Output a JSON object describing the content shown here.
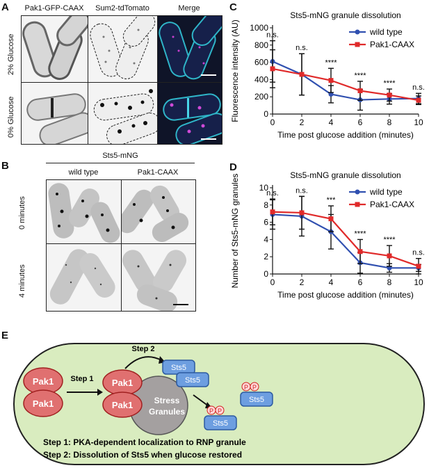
{
  "panelA": {
    "letter": "A",
    "columns": [
      "Pak1-GFP-CAAX",
      "Sum2-tdTomato",
      "Merge"
    ],
    "rows": [
      "2% Glucose",
      "0% Glucose"
    ]
  },
  "panelB": {
    "letter": "B",
    "title": "Sts5-mNG",
    "columns": [
      "wild type",
      "Pak1-CAAX"
    ],
    "rows": [
      "0 minutes",
      "4 minutes"
    ]
  },
  "panelC": {
    "letter": "C"
  },
  "panelD": {
    "letter": "D"
  },
  "panelE": {
    "letter": "E",
    "pak1": "Pak1",
    "sts5": "Sts5",
    "step1": "Step 1",
    "step2": "Step 2",
    "stress1": "Stress",
    "stress2": "Granules",
    "p": "P",
    "legend1": "Step 1: PKA-dependent localization to RNP granule",
    "legend2": "Step 2: Dissolution of Sts5 when glucose restored"
  },
  "chart_data": [
    {
      "type": "line",
      "title": "Sts5-mNG granule dissolution",
      "xlabel": "Time post glucose addition (minutes)",
      "ylabel": "Fluorescence intensity (AU)",
      "x": [
        0,
        2,
        4,
        6,
        8,
        10
      ],
      "xlim": [
        0,
        10
      ],
      "ylim": [
        0,
        1000
      ],
      "xticks": [
        0,
        2,
        4,
        6,
        8,
        10
      ],
      "yticks": [
        0,
        200,
        400,
        600,
        800,
        1000
      ],
      "series": [
        {
          "name": "wild type",
          "color": "#3050b0",
          "marker": "circle",
          "values": [
            610,
            460,
            230,
            165,
            175,
            180
          ],
          "err": [
            240,
            240,
            100,
            120,
            60,
            60
          ]
        },
        {
          "name": "Pak1-CAAX",
          "color": "#e02a2a",
          "marker": "square",
          "values": [
            525,
            460,
            390,
            270,
            220,
            160
          ],
          "err": [
            220,
            240,
            140,
            110,
            70,
            50
          ]
        }
      ],
      "significance": [
        {
          "x": 0,
          "label": "n.s."
        },
        {
          "x": 2,
          "label": "n.s."
        },
        {
          "x": 4,
          "label": "****"
        },
        {
          "x": 6,
          "label": "****"
        },
        {
          "x": 8,
          "label": "****"
        },
        {
          "x": 10,
          "label": "n.s."
        }
      ],
      "legend": "top-right"
    },
    {
      "type": "line",
      "title": "Sts5-mNG granule dissolution",
      "xlabel": "Time post glucose addition (minutes)",
      "ylabel": "Number of Sts5-mNG granules",
      "x": [
        0,
        2,
        4,
        6,
        8,
        10
      ],
      "xlim": [
        0,
        10
      ],
      "ylim": [
        0,
        10
      ],
      "xticks": [
        0,
        2,
        4,
        6,
        8,
        10
      ],
      "yticks": [
        0,
        2,
        4,
        6,
        8,
        10
      ],
      "series": [
        {
          "name": "wild type",
          "color": "#3050b0",
          "marker": "circle",
          "values": [
            6.9,
            6.7,
            4.9,
            1.3,
            0.7,
            0.7
          ],
          "err": [
            1.7,
            2.3,
            2.0,
            1.2,
            0.5,
            0.4
          ]
        },
        {
          "name": "Pak1-CAAX",
          "color": "#e02a2a",
          "marker": "square",
          "values": [
            7.2,
            7.1,
            6.4,
            2.6,
            2.1,
            0.9
          ],
          "err": [
            1.5,
            1.9,
            1.5,
            1.4,
            1.2,
            0.9
          ]
        }
      ],
      "significance": [
        {
          "x": 0,
          "label": "n.s."
        },
        {
          "x": 2,
          "label": "n.s."
        },
        {
          "x": 4,
          "label": "***"
        },
        {
          "x": 6,
          "label": "****"
        },
        {
          "x": 8,
          "label": "****"
        },
        {
          "x": 10,
          "label": "n.s."
        }
      ],
      "legend": "top-right"
    }
  ]
}
